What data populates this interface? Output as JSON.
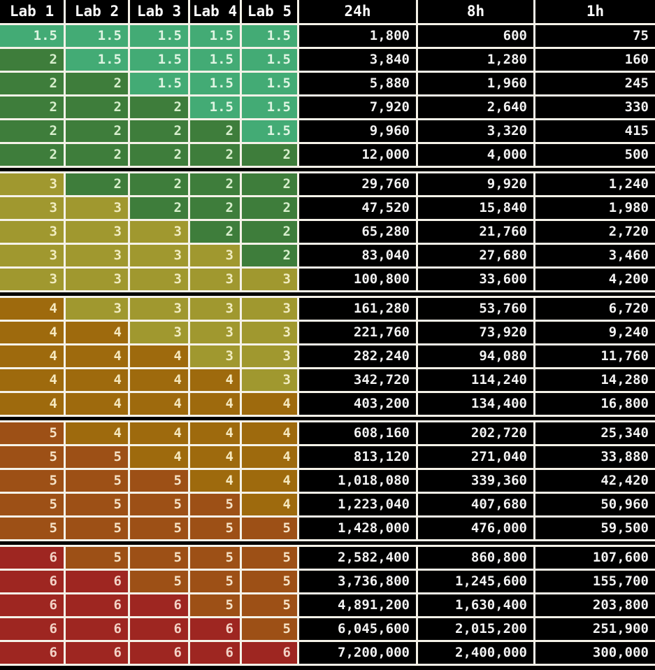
{
  "table": {
    "columns": [
      "Lab 1",
      "Lab 2",
      "Lab 3",
      "Lab 4",
      "Lab 5",
      "24h",
      "8h",
      "1h"
    ],
    "groups": [
      {
        "tier": "2",
        "rows": [
          {
            "labs": [
              "1.5",
              "1.5",
              "1.5",
              "1.5",
              "1.5"
            ],
            "h24": "1,800",
            "h8": "600",
            "h1": "75"
          },
          {
            "labs": [
              "2",
              "1.5",
              "1.5",
              "1.5",
              "1.5"
            ],
            "h24": "3,840",
            "h8": "1,280",
            "h1": "160"
          },
          {
            "labs": [
              "2",
              "2",
              "1.5",
              "1.5",
              "1.5"
            ],
            "h24": "5,880",
            "h8": "1,960",
            "h1": "245"
          },
          {
            "labs": [
              "2",
              "2",
              "2",
              "1.5",
              "1.5"
            ],
            "h24": "7,920",
            "h8": "2,640",
            "h1": "330"
          },
          {
            "labs": [
              "2",
              "2",
              "2",
              "2",
              "1.5"
            ],
            "h24": "9,960",
            "h8": "3,320",
            "h1": "415"
          },
          {
            "labs": [
              "2",
              "2",
              "2",
              "2",
              "2"
            ],
            "h24": "12,000",
            "h8": "4,000",
            "h1": "500"
          }
        ]
      },
      {
        "tier": "3",
        "rows": [
          {
            "labs": [
              "3",
              "2",
              "2",
              "2",
              "2"
            ],
            "h24": "29,760",
            "h8": "9,920",
            "h1": "1,240"
          },
          {
            "labs": [
              "3",
              "3",
              "2",
              "2",
              "2"
            ],
            "h24": "47,520",
            "h8": "15,840",
            "h1": "1,980"
          },
          {
            "labs": [
              "3",
              "3",
              "3",
              "2",
              "2"
            ],
            "h24": "65,280",
            "h8": "21,760",
            "h1": "2,720"
          },
          {
            "labs": [
              "3",
              "3",
              "3",
              "3",
              "2"
            ],
            "h24": "83,040",
            "h8": "27,680",
            "h1": "3,460"
          },
          {
            "labs": [
              "3",
              "3",
              "3",
              "3",
              "3"
            ],
            "h24": "100,800",
            "h8": "33,600",
            "h1": "4,200"
          }
        ]
      },
      {
        "tier": "4",
        "rows": [
          {
            "labs": [
              "4",
              "3",
              "3",
              "3",
              "3"
            ],
            "h24": "161,280",
            "h8": "53,760",
            "h1": "6,720"
          },
          {
            "labs": [
              "4",
              "4",
              "3",
              "3",
              "3"
            ],
            "h24": "221,760",
            "h8": "73,920",
            "h1": "9,240"
          },
          {
            "labs": [
              "4",
              "4",
              "4",
              "3",
              "3"
            ],
            "h24": "282,240",
            "h8": "94,080",
            "h1": "11,760"
          },
          {
            "labs": [
              "4",
              "4",
              "4",
              "4",
              "3"
            ],
            "h24": "342,720",
            "h8": "114,240",
            "h1": "14,280"
          },
          {
            "labs": [
              "4",
              "4",
              "4",
              "4",
              "4"
            ],
            "h24": "403,200",
            "h8": "134,400",
            "h1": "16,800"
          }
        ]
      },
      {
        "tier": "5",
        "rows": [
          {
            "labs": [
              "5",
              "4",
              "4",
              "4",
              "4"
            ],
            "h24": "608,160",
            "h8": "202,720",
            "h1": "25,340"
          },
          {
            "labs": [
              "5",
              "5",
              "4",
              "4",
              "4"
            ],
            "h24": "813,120",
            "h8": "271,040",
            "h1": "33,880"
          },
          {
            "labs": [
              "5",
              "5",
              "5",
              "4",
              "4"
            ],
            "h24": "1,018,080",
            "h8": "339,360",
            "h1": "42,420"
          },
          {
            "labs": [
              "5",
              "5",
              "5",
              "5",
              "4"
            ],
            "h24": "1,223,040",
            "h8": "407,680",
            "h1": "50,960"
          },
          {
            "labs": [
              "5",
              "5",
              "5",
              "5",
              "5"
            ],
            "h24": "1,428,000",
            "h8": "476,000",
            "h1": "59,500"
          }
        ]
      },
      {
        "tier": "6",
        "rows": [
          {
            "labs": [
              "6",
              "5",
              "5",
              "5",
              "5"
            ],
            "h24": "2,582,400",
            "h8": "860,800",
            "h1": "107,600"
          },
          {
            "labs": [
              "6",
              "6",
              "5",
              "5",
              "5"
            ],
            "h24": "3,736,800",
            "h8": "1,245,600",
            "h1": "155,700"
          },
          {
            "labs": [
              "6",
              "6",
              "6",
              "5",
              "5"
            ],
            "h24": "4,891,200",
            "h8": "1,630,400",
            "h1": "203,800"
          },
          {
            "labs": [
              "6",
              "6",
              "6",
              "6",
              "5"
            ],
            "h24": "6,045,600",
            "h8": "2,015,200",
            "h1": "251,900"
          },
          {
            "labs": [
              "6",
              "6",
              "6",
              "6",
              "6"
            ],
            "h24": "7,200,000",
            "h8": "2,400,000",
            "h1": "300,000"
          }
        ]
      }
    ]
  },
  "colors": {
    "lab_levels": {
      "1.5": {
        "bg": "#43ab75",
        "fg": "#def5e2"
      },
      "2": {
        "bg": "#3e7d3b",
        "fg": "#d8efcd"
      },
      "3": {
        "bg": "#a0982f",
        "fg": "#f1ecc0"
      },
      "4": {
        "bg": "#9e6a0d",
        "fg": "#f6e9bf"
      },
      "5": {
        "bg": "#9d5016",
        "fg": "#f6e2c6"
      },
      "6": {
        "bg": "#9e2621",
        "fg": "#f3d2c6"
      }
    },
    "grid_line": "#f5f2e8",
    "value_cell_bg": "#000000",
    "value_cell_fg": "#f2f2f2"
  },
  "chart_data": {
    "type": "table",
    "title": "",
    "columns": [
      "Lab 1",
      "Lab 2",
      "Lab 3",
      "Lab 4",
      "Lab 5",
      "24h",
      "8h",
      "1h"
    ],
    "rows": [
      [
        1.5,
        1.5,
        1.5,
        1.5,
        1.5,
        1800,
        600,
        75
      ],
      [
        2,
        1.5,
        1.5,
        1.5,
        1.5,
        3840,
        1280,
        160
      ],
      [
        2,
        2,
        1.5,
        1.5,
        1.5,
        5880,
        1960,
        245
      ],
      [
        2,
        2,
        2,
        1.5,
        1.5,
        7920,
        2640,
        330
      ],
      [
        2,
        2,
        2,
        2,
        1.5,
        9960,
        3320,
        415
      ],
      [
        2,
        2,
        2,
        2,
        2,
        12000,
        4000,
        500
      ],
      [
        3,
        2,
        2,
        2,
        2,
        29760,
        9920,
        1240
      ],
      [
        3,
        3,
        2,
        2,
        2,
        47520,
        15840,
        1980
      ],
      [
        3,
        3,
        3,
        2,
        2,
        65280,
        21760,
        2720
      ],
      [
        3,
        3,
        3,
        3,
        2,
        83040,
        27680,
        3460
      ],
      [
        3,
        3,
        3,
        3,
        3,
        100800,
        33600,
        4200
      ],
      [
        4,
        3,
        3,
        3,
        3,
        161280,
        53760,
        6720
      ],
      [
        4,
        4,
        3,
        3,
        3,
        221760,
        73920,
        9240
      ],
      [
        4,
        4,
        4,
        3,
        3,
        282240,
        94080,
        11760
      ],
      [
        4,
        4,
        4,
        4,
        3,
        342720,
        114240,
        14280
      ],
      [
        4,
        4,
        4,
        4,
        4,
        403200,
        134400,
        16800
      ],
      [
        5,
        4,
        4,
        4,
        4,
        608160,
        202720,
        25340
      ],
      [
        5,
        5,
        4,
        4,
        4,
        813120,
        271040,
        33880
      ],
      [
        5,
        5,
        5,
        4,
        4,
        1018080,
        339360,
        42420
      ],
      [
        5,
        5,
        5,
        5,
        4,
        1223040,
        407680,
        50960
      ],
      [
        5,
        5,
        5,
        5,
        5,
        1428000,
        476000,
        59500
      ],
      [
        6,
        5,
        5,
        5,
        5,
        2582400,
        860800,
        107600
      ],
      [
        6,
        6,
        5,
        5,
        5,
        3736800,
        1245600,
        155700
      ],
      [
        6,
        6,
        6,
        5,
        5,
        4891200,
        1630400,
        203800
      ],
      [
        6,
        6,
        6,
        6,
        5,
        6045600,
        2015200,
        251900
      ],
      [
        6,
        6,
        6,
        6,
        6,
        7200000,
        2400000,
        300000
      ]
    ],
    "layout_hints": {
      "heatmap_columns": [
        "Lab 1",
        "Lab 2",
        "Lab 3",
        "Lab 4",
        "Lab 5"
      ],
      "group_breaks_after_row": [
        6,
        11,
        16,
        21
      ],
      "value_columns_background": "black",
      "grid": "on"
    }
  }
}
